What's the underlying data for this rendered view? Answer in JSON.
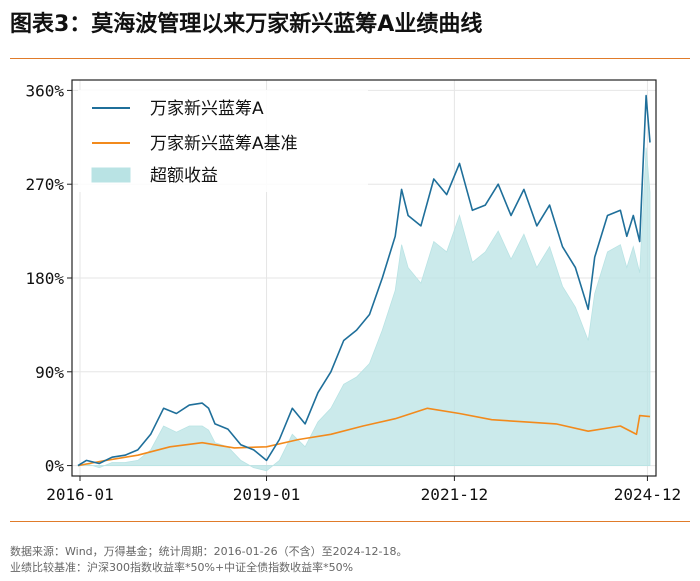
{
  "header": {
    "title": "图表3：莫海波管理以来万家新兴蓝筹A业绩曲线"
  },
  "footer": {
    "source": "数据来源：Wind，万得基金；统计周期：2016-01-26（不含）至2024-12-18。",
    "benchmark": "业绩比较基准：沪深300指数收益率*50%+中证全债指数收益率*50%"
  },
  "colors": {
    "fund": "#1f6f9a",
    "benchmark": "#f28a1c",
    "excess": "#b9e3e4",
    "rule": "#e07b2a"
  },
  "chart_data": {
    "type": "line",
    "title": "",
    "xlabel": "",
    "ylabel": "",
    "x_range": [
      2016.07,
      2024.96
    ],
    "ylim": [
      -10,
      370
    ],
    "y_ticks": [
      0,
      90,
      180,
      270,
      360
    ],
    "y_tick_labels": [
      "0%",
      "90%",
      "180%",
      "270%",
      "360%"
    ],
    "x_ticks": [
      2016.0,
      2019.0,
      2021.92,
      2024.92
    ],
    "x_tick_labels": [
      "2016-01",
      "2019-01",
      "2021-12",
      "2024-12"
    ],
    "grid": true,
    "legend_position": "top-left",
    "series": [
      {
        "name": "万家新兴蓝筹A",
        "kind": "line",
        "x": [
          2016.07,
          2016.2,
          2016.4,
          2016.6,
          2016.8,
          2017.0,
          2017.2,
          2017.4,
          2017.6,
          2017.8,
          2018.0,
          2018.1,
          2018.2,
          2018.4,
          2018.6,
          2018.8,
          2019.0,
          2019.2,
          2019.4,
          2019.6,
          2019.8,
          2020.0,
          2020.2,
          2020.4,
          2020.6,
          2020.8,
          2021.0,
          2021.1,
          2021.2,
          2021.4,
          2021.6,
          2021.8,
          2022.0,
          2022.2,
          2022.4,
          2022.6,
          2022.8,
          2023.0,
          2023.2,
          2023.4,
          2023.6,
          2023.8,
          2024.0,
          2024.1,
          2024.3,
          2024.5,
          2024.6,
          2024.7,
          2024.8,
          2024.9,
          2024.96
        ],
        "values": [
          0,
          5,
          2,
          8,
          10,
          15,
          30,
          55,
          50,
          58,
          60,
          55,
          40,
          35,
          20,
          15,
          5,
          25,
          55,
          40,
          70,
          90,
          120,
          130,
          145,
          180,
          220,
          265,
          240,
          230,
          275,
          260,
          290,
          245,
          250,
          270,
          240,
          265,
          230,
          250,
          210,
          190,
          150,
          200,
          240,
          245,
          220,
          240,
          215,
          355,
          310
        ]
      },
      {
        "name": "万家新兴蓝筹A基准",
        "kind": "line",
        "x": [
          2016.07,
          2016.5,
          2017.0,
          2017.5,
          2018.0,
          2018.5,
          2019.0,
          2019.5,
          2020.0,
          2020.5,
          2021.0,
          2021.5,
          2022.0,
          2022.5,
          2023.0,
          2023.5,
          2024.0,
          2024.5,
          2024.75,
          2024.8,
          2024.96
        ],
        "values": [
          0,
          5,
          10,
          18,
          22,
          17,
          18,
          25,
          30,
          38,
          45,
          55,
          50,
          44,
          42,
          40,
          33,
          38,
          30,
          48,
          47
        ]
      },
      {
        "name": "超额收益",
        "kind": "area",
        "x": [
          2016.07,
          2016.2,
          2016.4,
          2016.6,
          2016.8,
          2017.0,
          2017.2,
          2017.4,
          2017.6,
          2017.8,
          2018.0,
          2018.1,
          2018.2,
          2018.4,
          2018.6,
          2018.8,
          2019.0,
          2019.2,
          2019.4,
          2019.6,
          2019.8,
          2020.0,
          2020.2,
          2020.4,
          2020.6,
          2020.8,
          2021.0,
          2021.1,
          2021.2,
          2021.4,
          2021.6,
          2021.8,
          2022.0,
          2022.2,
          2022.4,
          2022.6,
          2022.8,
          2023.0,
          2023.2,
          2023.4,
          2023.6,
          2023.8,
          2024.0,
          2024.1,
          2024.3,
          2024.5,
          2024.6,
          2024.7,
          2024.8,
          2024.9,
          2024.96
        ],
        "values": [
          0,
          2,
          -2,
          3,
          3,
          5,
          15,
          38,
          32,
          38,
          38,
          34,
          22,
          18,
          5,
          -2,
          -5,
          5,
          30,
          18,
          42,
          55,
          78,
          85,
          98,
          130,
          168,
          212,
          190,
          175,
          215,
          205,
          240,
          195,
          205,
          225,
          198,
          222,
          190,
          210,
          172,
          152,
          120,
          165,
          205,
          212,
          190,
          210,
          185,
          305,
          262
        ]
      }
    ]
  }
}
